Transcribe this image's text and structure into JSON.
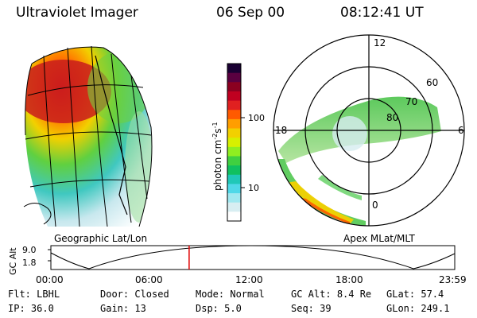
{
  "header": {
    "title": "Ultraviolet Imager",
    "date": "06 Sep 00",
    "time": "08:12:41 UT"
  },
  "colorbar": {
    "unit_prefix": "photon cm",
    "unit_exp1": "-2",
    "unit_s": "s",
    "unit_exp2": "-1",
    "ticks": [
      "100",
      "10"
    ],
    "colors": [
      "#1a0033",
      "#5a0040",
      "#8b0020",
      "#c00020",
      "#e02020",
      "#ff5a00",
      "#ff9e00",
      "#f2d000",
      "#d7f000",
      "#90ee20",
      "#40d040",
      "#10c060",
      "#20c8b8",
      "#50d8e8",
      "#a0e8f0",
      "#d8eef2",
      "#ffffff"
    ]
  },
  "panels": {
    "left_label": "Geographic Lat/Lon",
    "right_label": "Apex MLat/MLT"
  },
  "polar": {
    "mlt_labels": [
      "12",
      "18",
      "6",
      "0"
    ],
    "lat_labels": [
      "60",
      "70",
      "80"
    ]
  },
  "timeline": {
    "ylabel": "GC Alt",
    "yticks": [
      "9.0",
      "1.8"
    ],
    "xticks": [
      "00:00",
      "06:00",
      "12:00",
      "18:00",
      "23:59"
    ],
    "marker_time_hours": 8.21
  },
  "footer": {
    "row1": [
      {
        "label": "Flt:",
        "value": "LBHL"
      },
      {
        "label": "Door:",
        "value": "Closed"
      },
      {
        "label": "Mode:",
        "value": "Normal"
      },
      {
        "label": "GC Alt:",
        "value": "8.4 Re"
      },
      {
        "label": "GLat:",
        "value": "57.4"
      }
    ],
    "row2": [
      {
        "label": "IP:",
        "value": "36.0"
      },
      {
        "label": "Gain:",
        "value": "13"
      },
      {
        "label": "Dsp:",
        "value": "5.0"
      },
      {
        "label": "Seq:",
        "value": "39"
      },
      {
        "label": "GLon:",
        "value": "249.1"
      }
    ]
  }
}
